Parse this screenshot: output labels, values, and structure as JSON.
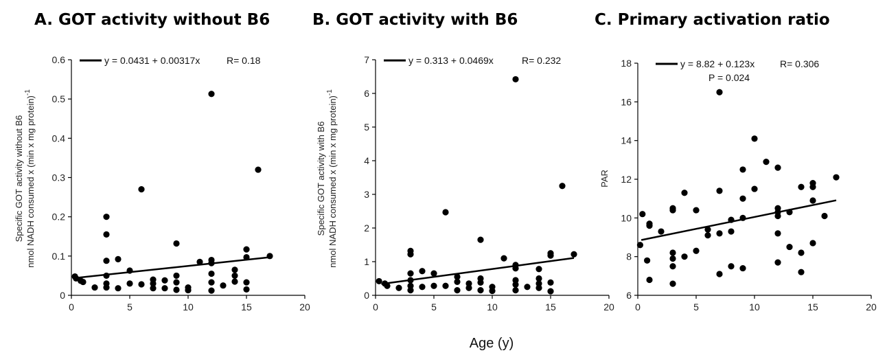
{
  "xlabel": "Age (y)",
  "chart_data": [
    {
      "type": "scatter",
      "title": "A. GOT activity without B6",
      "ylabel_lines": [
        "Specific GOT activity without B6",
        "nmol NADH consumed x (min x mg protein)"
      ],
      "ylabel_sup": "-1",
      "xlim": [
        0,
        20
      ],
      "ylim": [
        0,
        0.6
      ],
      "xticks": [
        "0",
        "5",
        "10",
        "15",
        "20"
      ],
      "yticks": [
        "0",
        "0.1",
        "0.2",
        "0.3",
        "0.4",
        "0.5",
        "0.6"
      ],
      "fit": {
        "intercept": 0.0431,
        "slope": 0.00317,
        "x_range": [
          0.5,
          17
        ]
      },
      "legend": [
        "y = 0.0431 + 0.00317x",
        "R= 0.18"
      ],
      "points": [
        [
          0.3,
          0.048
        ],
        [
          0.4,
          0.043
        ],
        [
          0.8,
          0.037
        ],
        [
          1,
          0.034
        ],
        [
          2,
          0.02
        ],
        [
          3,
          0.2
        ],
        [
          3,
          0.155
        ],
        [
          3,
          0.088
        ],
        [
          3,
          0.05
        ],
        [
          3,
          0.03
        ],
        [
          3,
          0.02
        ],
        [
          4,
          0.092
        ],
        [
          4,
          0.018
        ],
        [
          5,
          0.063
        ],
        [
          5,
          0.03
        ],
        [
          6,
          0.27
        ],
        [
          6,
          0.028
        ],
        [
          7,
          0.04
        ],
        [
          7,
          0.03
        ],
        [
          7,
          0.018
        ],
        [
          8,
          0.038
        ],
        [
          8,
          0.018
        ],
        [
          9,
          0.132
        ],
        [
          9,
          0.05
        ],
        [
          9,
          0.033
        ],
        [
          9,
          0.014
        ],
        [
          10,
          0.02
        ],
        [
          10,
          0.013
        ],
        [
          11,
          0.085
        ],
        [
          12,
          0.513
        ],
        [
          12,
          0.09
        ],
        [
          12,
          0.082
        ],
        [
          12,
          0.055
        ],
        [
          12,
          0.033
        ],
        [
          12,
          0.012
        ],
        [
          13,
          0.025
        ],
        [
          14,
          0.065
        ],
        [
          14,
          0.05
        ],
        [
          14,
          0.035
        ],
        [
          15,
          0.117
        ],
        [
          15,
          0.097
        ],
        [
          15,
          0.033
        ],
        [
          15,
          0.015
        ],
        [
          16,
          0.32
        ],
        [
          17,
          0.1
        ]
      ]
    },
    {
      "type": "scatter",
      "title": "B. GOT activity with B6",
      "ylabel_lines": [
        "Specific GOT activity with B6",
        "nmol NADH consumed x (min x mg protein)"
      ],
      "ylabel_sup": "-1",
      "xlim": [
        0,
        20
      ],
      "ylim": [
        0,
        7
      ],
      "xticks": [
        "0",
        "5",
        "10",
        "15",
        "20"
      ],
      "yticks": [
        "0",
        "1",
        "2",
        "3",
        "4",
        "5",
        "6",
        "7"
      ],
      "fit": {
        "intercept": 0.313,
        "slope": 0.0469,
        "x_range": [
          0.5,
          17
        ]
      },
      "legend": [
        "y = 0.313 + 0.0469x",
        "R= 0.232"
      ],
      "points": [
        [
          0.3,
          0.42
        ],
        [
          0.8,
          0.35
        ],
        [
          1,
          0.28
        ],
        [
          2,
          0.22
        ],
        [
          3,
          1.32
        ],
        [
          3,
          1.22
        ],
        [
          3,
          0.65
        ],
        [
          3,
          0.45
        ],
        [
          3,
          0.28
        ],
        [
          3,
          0.15
        ],
        [
          4,
          0.72
        ],
        [
          4,
          0.25
        ],
        [
          5,
          0.65
        ],
        [
          5,
          0.28
        ],
        [
          6,
          2.47
        ],
        [
          6,
          0.28
        ],
        [
          7,
          0.55
        ],
        [
          7,
          0.4
        ],
        [
          7,
          0.15
        ],
        [
          8,
          0.35
        ],
        [
          8,
          0.22
        ],
        [
          9,
          1.65
        ],
        [
          9,
          0.5
        ],
        [
          9,
          0.38
        ],
        [
          9,
          0.15
        ],
        [
          10,
          0.25
        ],
        [
          10,
          0.13
        ],
        [
          11,
          1.1
        ],
        [
          12,
          6.42
        ],
        [
          12,
          0.9
        ],
        [
          12,
          0.8
        ],
        [
          12,
          0.45
        ],
        [
          12,
          0.32
        ],
        [
          12,
          0.15
        ],
        [
          13,
          0.25
        ],
        [
          14,
          0.78
        ],
        [
          14,
          0.5
        ],
        [
          14,
          0.35
        ],
        [
          14,
          0.22
        ],
        [
          15,
          1.25
        ],
        [
          15,
          1.18
        ],
        [
          15,
          0.38
        ],
        [
          15,
          0.12
        ],
        [
          16,
          3.25
        ],
        [
          17,
          1.22
        ]
      ]
    },
    {
      "type": "scatter",
      "title": "C. Primary activation ratio",
      "ylabel_lines": [
        "PAR"
      ],
      "ylabel_sup": "",
      "xlim": [
        0,
        20
      ],
      "ylim": [
        6,
        18
      ],
      "xticks": [
        "0",
        "5",
        "10",
        "15",
        "20"
      ],
      "yticks": [
        "6",
        "8",
        "10",
        "12",
        "14",
        "16",
        "18"
      ],
      "fit": {
        "intercept": 8.82,
        "slope": 0.123,
        "x_range": [
          0.3,
          17
        ]
      },
      "legend": [
        "y = 8.82 + 0.123x",
        "R= 0.306",
        "P = 0.024"
      ],
      "points": [
        [
          0.2,
          8.6
        ],
        [
          0.4,
          10.2
        ],
        [
          0.8,
          7.8
        ],
        [
          1,
          9.7
        ],
        [
          1,
          9.6
        ],
        [
          1,
          6.8
        ],
        [
          2,
          9.3
        ],
        [
          3,
          10.5
        ],
        [
          3,
          10.4
        ],
        [
          3,
          8.2
        ],
        [
          3,
          7.9
        ],
        [
          3,
          7.5
        ],
        [
          3,
          6.6
        ],
        [
          4,
          11.3
        ],
        [
          4,
          8.0
        ],
        [
          5,
          10.4
        ],
        [
          5,
          8.3
        ],
        [
          6,
          9.4
        ],
        [
          6,
          9.1
        ],
        [
          7,
          16.5
        ],
        [
          7,
          11.4
        ],
        [
          7,
          9.2
        ],
        [
          7,
          7.1
        ],
        [
          8,
          9.9
        ],
        [
          8,
          9.3
        ],
        [
          8,
          7.5
        ],
        [
          9,
          12.5
        ],
        [
          9,
          11.0
        ],
        [
          9,
          10.0
        ],
        [
          9,
          7.4
        ],
        [
          10,
          14.1
        ],
        [
          10,
          11.5
        ],
        [
          11,
          12.9
        ],
        [
          12,
          12.6
        ],
        [
          12,
          10.5
        ],
        [
          12,
          10.3
        ],
        [
          12,
          10.1
        ],
        [
          12,
          9.2
        ],
        [
          12,
          7.7
        ],
        [
          13,
          10.3
        ],
        [
          13,
          8.5
        ],
        [
          14,
          11.6
        ],
        [
          14,
          8.2
        ],
        [
          14,
          7.2
        ],
        [
          15,
          11.8
        ],
        [
          15,
          11.6
        ],
        [
          15,
          10.9
        ],
        [
          15,
          8.7
        ],
        [
          16,
          10.1
        ],
        [
          17,
          12.1
        ]
      ]
    }
  ]
}
